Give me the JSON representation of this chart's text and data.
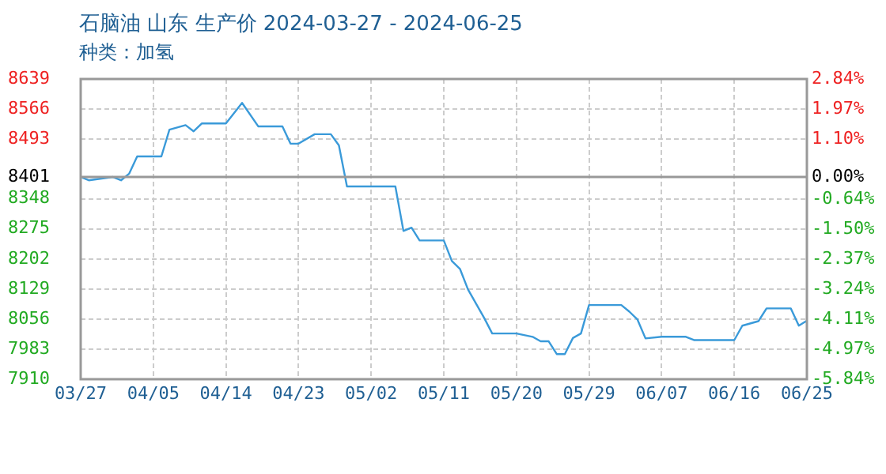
{
  "chart_data": {
    "type": "line",
    "title": "石脑油 山东 生产价 2024-03-27 - 2024-06-25",
    "subtitle": "种类：加氢",
    "x": [
      "2024-03-27",
      "2024-03-28",
      "2024-03-31",
      "2024-04-01",
      "2024-04-02",
      "2024-04-03",
      "2024-04-06",
      "2024-04-07",
      "2024-04-09",
      "2024-04-10",
      "2024-04-11",
      "2024-04-14",
      "2024-04-16",
      "2024-04-18",
      "2024-04-21",
      "2024-04-22",
      "2024-04-23",
      "2024-04-25",
      "2024-04-27",
      "2024-04-28",
      "2024-04-29",
      "2024-05-05",
      "2024-05-06",
      "2024-05-07",
      "2024-05-08",
      "2024-05-11",
      "2024-05-12",
      "2024-05-13",
      "2024-05-14",
      "2024-05-16",
      "2024-05-17",
      "2024-05-20",
      "2024-05-22",
      "2024-05-23",
      "2024-05-24",
      "2024-05-25",
      "2024-05-26",
      "2024-05-27",
      "2024-05-28",
      "2024-05-29",
      "2024-06-02",
      "2024-06-03",
      "2024-06-04",
      "2024-06-05",
      "2024-06-07",
      "2024-06-10",
      "2024-06-11",
      "2024-06-16",
      "2024-06-17",
      "2024-06-19",
      "2024-06-20",
      "2024-06-23",
      "2024-06-24",
      "2024-06-25"
    ],
    "series": [
      {
        "color": "#3a9ad9",
        "values": [
          8401,
          8393,
          8401,
          8393,
          8409,
          8451,
          8451,
          8516,
          8527,
          8512,
          8531,
          8531,
          8581,
          8524,
          8524,
          8482,
          8482,
          8505,
          8505,
          8478,
          8378,
          8378,
          8270,
          8278,
          8247,
          8247,
          8197,
          8178,
          8128,
          8059,
          8021,
          8021,
          8013,
          8002,
          8002,
          7971,
          7971,
          8010,
          8021,
          8090,
          8090,
          8074,
          8055,
          8009,
          8013,
          8013,
          8005,
          8005,
          8040,
          8051,
          8082,
          8082,
          8040,
          8052
        ]
      }
    ],
    "xlim": [
      "2024-03-27",
      "2024-06-25"
    ],
    "xticks": [
      {
        "value": "2024-03-27",
        "label": "03/27"
      },
      {
        "value": "2024-04-05",
        "label": "04/05"
      },
      {
        "value": "2024-04-14",
        "label": "04/14"
      },
      {
        "value": "2024-04-23",
        "label": "04/23"
      },
      {
        "value": "2024-05-02",
        "label": "05/02"
      },
      {
        "value": "2024-05-11",
        "label": "05/11"
      },
      {
        "value": "2024-05-20",
        "label": "05/20"
      },
      {
        "value": "2024-05-29",
        "label": "05/29"
      },
      {
        "value": "2024-06-07",
        "label": "06/07"
      },
      {
        "value": "2024-06-16",
        "label": "06/16"
      },
      {
        "value": "2024-06-25",
        "label": "06/25"
      }
    ],
    "ylim": [
      7910,
      8639
    ],
    "yticks": [
      7910,
      7983,
      8056,
      8129,
      8202,
      8275,
      8348,
      8401,
      8493,
      8566,
      8639
    ],
    "y2lim": [
      -5.84,
      2.84
    ],
    "y2ticks": [
      {
        "value": -5.84,
        "label": "-5.84%"
      },
      {
        "value": -4.97,
        "label": "-4.97%"
      },
      {
        "value": -4.11,
        "label": "-4.11%"
      },
      {
        "value": -3.24,
        "label": "-3.24%"
      },
      {
        "value": -2.37,
        "label": "-2.37%"
      },
      {
        "value": -1.5,
        "label": "-1.50%"
      },
      {
        "value": -0.64,
        "label": "-0.64%"
      },
      {
        "value": 0,
        "label": "0.00%"
      },
      {
        "value": 1.1,
        "label": "1.10%"
      },
      {
        "value": 1.97,
        "label": "1.97%"
      },
      {
        "value": 2.84,
        "label": "2.84%"
      }
    ],
    "ref_lines": [
      {
        "axis": "y",
        "value": 8401,
        "color": "#999999"
      }
    ],
    "grid": true,
    "legend": false,
    "marker": "none",
    "line_style": "solid"
  }
}
